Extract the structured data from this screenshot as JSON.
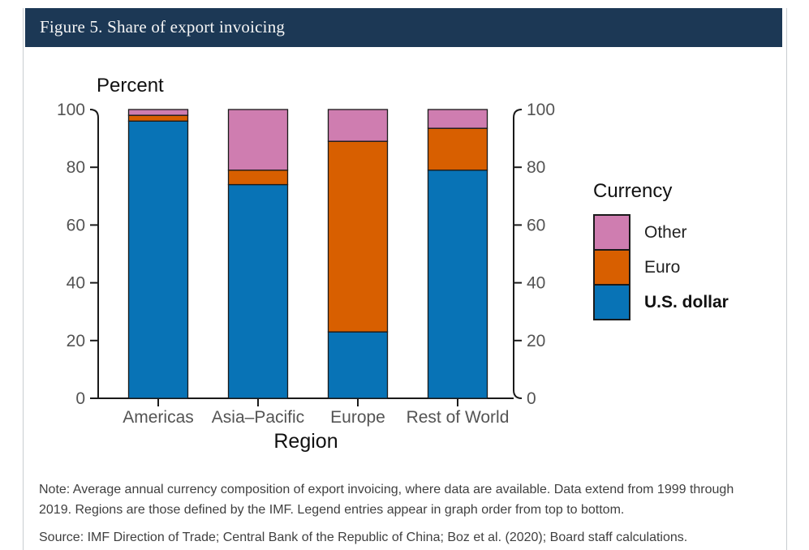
{
  "page": {
    "header_title": "Figure 5. Share of export invoicing"
  },
  "chart_data": {
    "type": "bar",
    "stacked": true,
    "orientation": "vertical",
    "ylabel": "Percent",
    "xlabel": "Region",
    "ylim": [
      0,
      100
    ],
    "yticks": [
      0,
      20,
      40,
      60,
      80,
      100
    ],
    "grid": false,
    "dual_axis_labels": true,
    "categories": [
      "Americas",
      "Asia–Pacific",
      "Europe",
      "Rest of World"
    ],
    "series": [
      {
        "name": "U.S. dollar",
        "color": "#0873B6",
        "values": [
          96,
          74,
          23,
          79
        ]
      },
      {
        "name": "Euro",
        "color": "#D85F00",
        "values": [
          2,
          5,
          66,
          14.5
        ]
      },
      {
        "name": "Other",
        "color": "#CF7DB0",
        "values": [
          2,
          21,
          11,
          6.5
        ]
      }
    ],
    "legend": {
      "title": "Currency",
      "position": "right",
      "entries": [
        {
          "series": "Other",
          "bold": false
        },
        {
          "series": "Euro",
          "bold": false
        },
        {
          "series": "U.S. dollar",
          "bold": true
        }
      ]
    }
  },
  "footnotes": {
    "note": "Note: Average annual currency composition of export invoicing, where data are available. Data extend from 1999 through 2019. Regions are those defined by the IMF. Legend entries appear in graph order from top to bottom.",
    "source": "Source: IMF Direction of Trade; Central Bank of the Republic of China; Boz et al. (2020); Board staff calculations."
  },
  "colors": {
    "header_bg": "#1C3855",
    "header_text": "#F5F5F5",
    "axis_text": "#545454",
    "axis_line": "#1A1A1A",
    "title_text": "#111111",
    "note_text": "#3F3F3F",
    "panel_border": "#C9CDD1"
  }
}
